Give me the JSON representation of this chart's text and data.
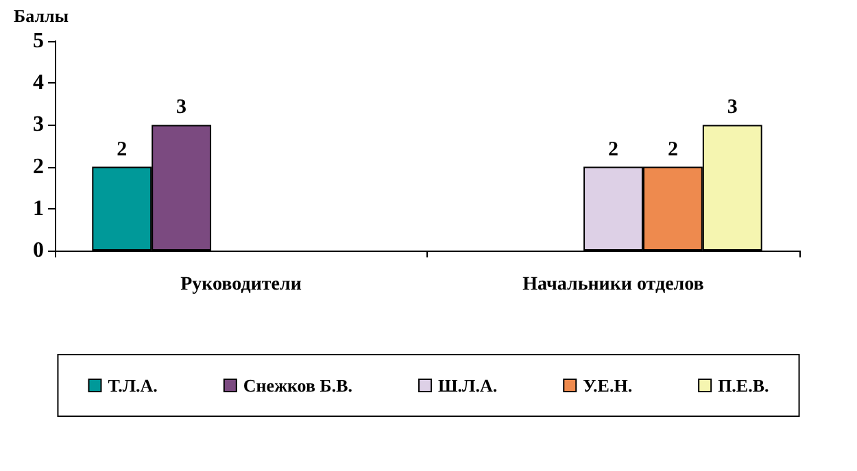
{
  "chart_data": {
    "type": "bar",
    "ylabel": "Баллы",
    "categories": [
      "Руководители",
      "Начальники отделов"
    ],
    "series": [
      {
        "name": "Т.Л.А.",
        "color": "#009999",
        "values": [
          2,
          null
        ]
      },
      {
        "name": "Снежков Б.В.",
        "color": "#7b4a80",
        "values": [
          3,
          null
        ]
      },
      {
        "name": "Ш.Л.А.",
        "color": "#ddd0e6",
        "values": [
          null,
          2
        ]
      },
      {
        "name": "У.Е.Н.",
        "color": "#ee8a4e",
        "values": [
          null,
          2
        ]
      },
      {
        "name": "П.Е.В.",
        "color": "#f5f5b0",
        "values": [
          null,
          3
        ]
      }
    ],
    "ylim": [
      0,
      5
    ],
    "yticks": [
      0,
      1,
      2,
      3,
      4,
      5
    ],
    "grid": false,
    "legend": "bottom",
    "data_labels": true
  }
}
